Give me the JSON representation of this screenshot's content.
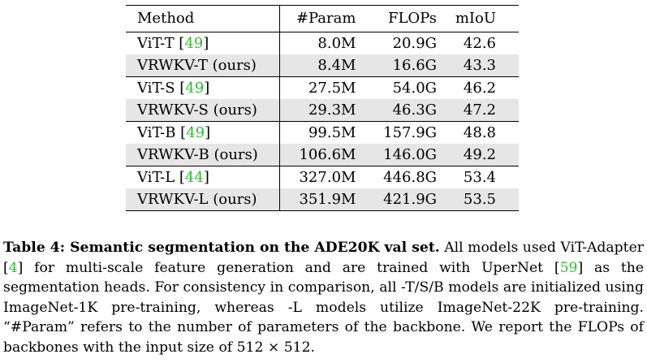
{
  "table": {
    "headers": {
      "method": "Method",
      "param": "#Param",
      "flops": "FLOPs",
      "miou": "mIoU"
    },
    "groups": [
      [
        {
          "name": "ViT-T [",
          "cite": "49",
          "close": "]",
          "param": "8.0M",
          "flops": "20.9G",
          "miou": "42.6"
        },
        {
          "name": "VRWKV-T (ours)",
          "cite": "",
          "close": "",
          "param": "8.4M",
          "flops": "16.6G",
          "miou": "43.3"
        }
      ],
      [
        {
          "name": "ViT-S [",
          "cite": "49",
          "close": "]",
          "param": "27.5M",
          "flops": "54.0G",
          "miou": "46.2"
        },
        {
          "name": "VRWKV-S (ours)",
          "cite": "",
          "close": "",
          "param": "29.3M",
          "flops": "46.3G",
          "miou": "47.2"
        }
      ],
      [
        {
          "name": "ViT-B [",
          "cite": "49",
          "close": "]",
          "param": "99.5M",
          "flops": "157.9G",
          "miou": "48.8"
        },
        {
          "name": "VRWKV-B (ours)",
          "cite": "",
          "close": "",
          "param": "106.6M",
          "flops": "146.0G",
          "miou": "49.2"
        }
      ],
      [
        {
          "name": "ViT-L [",
          "cite": "44",
          "close": "]",
          "param": "327.0M",
          "flops": "446.8G",
          "miou": "53.4"
        },
        {
          "name": "VRWKV-L (ours)",
          "cite": "",
          "close": "",
          "param": "351.9M",
          "flops": "421.9G",
          "miou": "53.5"
        }
      ]
    ]
  },
  "caption": {
    "label": "Table 4: Semantic segmentation on the ADE20K val set.",
    "t1": " All models used ViT-Adapter [",
    "c1": "4",
    "t2": "] for multi-scale feature generation and are trained with UperNet [",
    "c2": "59",
    "t3": "] as the segmentation heads. For consistency in comparison, all -T/S/B models are initialized using ImageNet-1K pre-training, whereas -L models utilize ImageNet-22K pre-training. “#Param” refers to the number of parameters of the backbone. We report the FLOPs of backbones with the input size of 512 × 512."
  },
  "colors": {
    "citation": "#2fbf2f",
    "row_shade": "#e6e6e6"
  }
}
